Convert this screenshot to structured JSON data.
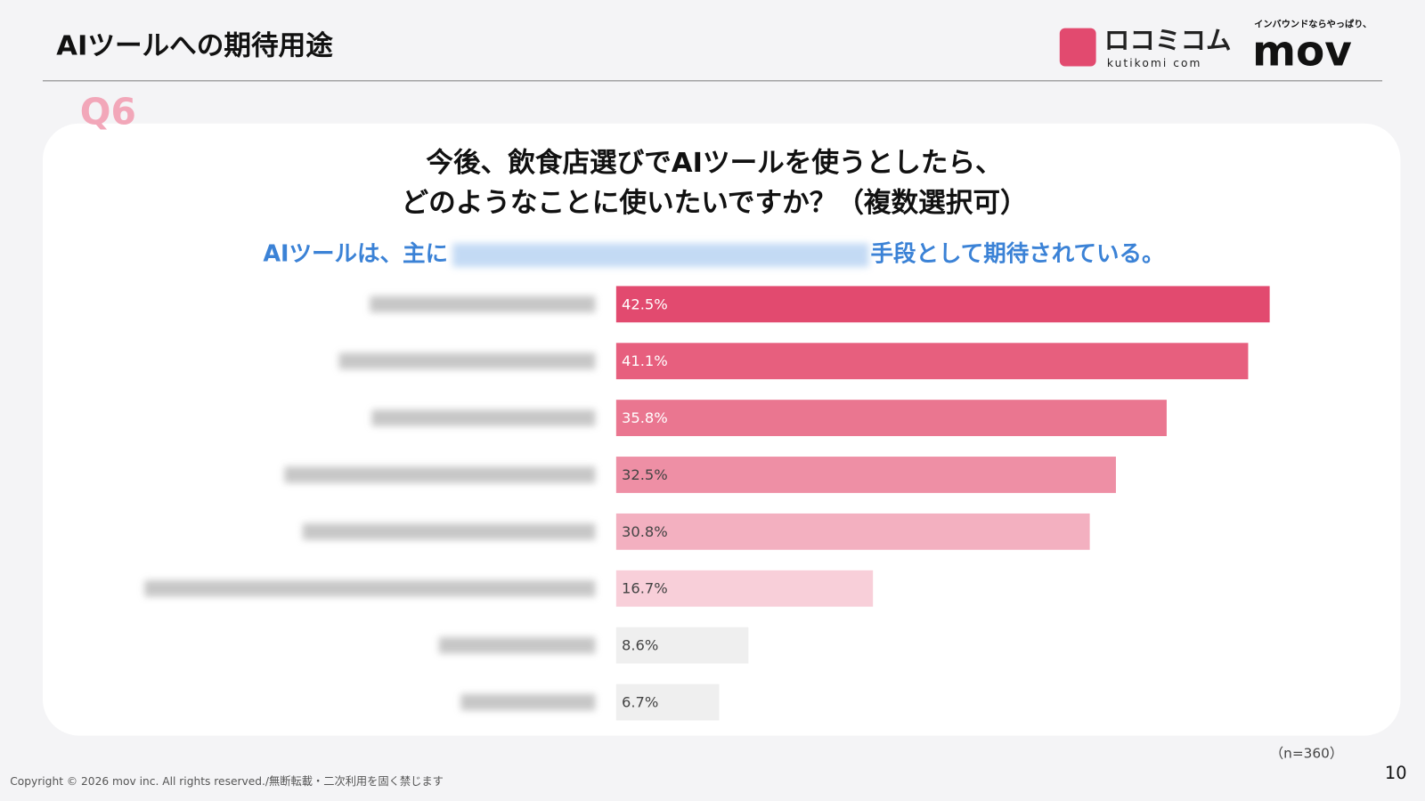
{
  "page": {
    "title": "AIツールへの期待用途",
    "question_no": "Q6",
    "logo_main": "ロコミコム",
    "logo_sub": "kutikomi com",
    "mov_tagline": "インバウンドならやっぱり、",
    "mov_logo": "mov",
    "sample_note": "（n=360）",
    "page_number": "10",
    "copyright": "Copyright © 2026 mov inc. All rights reserved./無断転載・二次利用を固く禁じます"
  },
  "chart_data": {
    "type": "hbar",
    "title": [
      "今後、飲食店選びでAIツールを使うとしたら、",
      "どのようなことに使いたいですか？（複数選択可）"
    ],
    "subtitle": [
      "AIツールは、主に",
      "手段として期待されている。"
    ],
    "categories": [
      null,
      null,
      null,
      null,
      null,
      null,
      null,
      null
    ],
    "values": [
      42.5,
      41.1,
      35.8,
      32.5,
      30.8,
      16.7,
      8.6,
      6.7
    ],
    "value_labels": [
      "42.5%",
      "41.1%",
      "35.8%",
      "32.5%",
      "30.8%",
      "16.7%",
      "8.6%",
      "6.7%"
    ],
    "colors": [
      "#e24a6f",
      "#e75f7e",
      "#ea7690",
      "#ee8fa5",
      "#f3b0c0",
      "#f8cfd9",
      "#efefef",
      "#efefef"
    ]
  }
}
